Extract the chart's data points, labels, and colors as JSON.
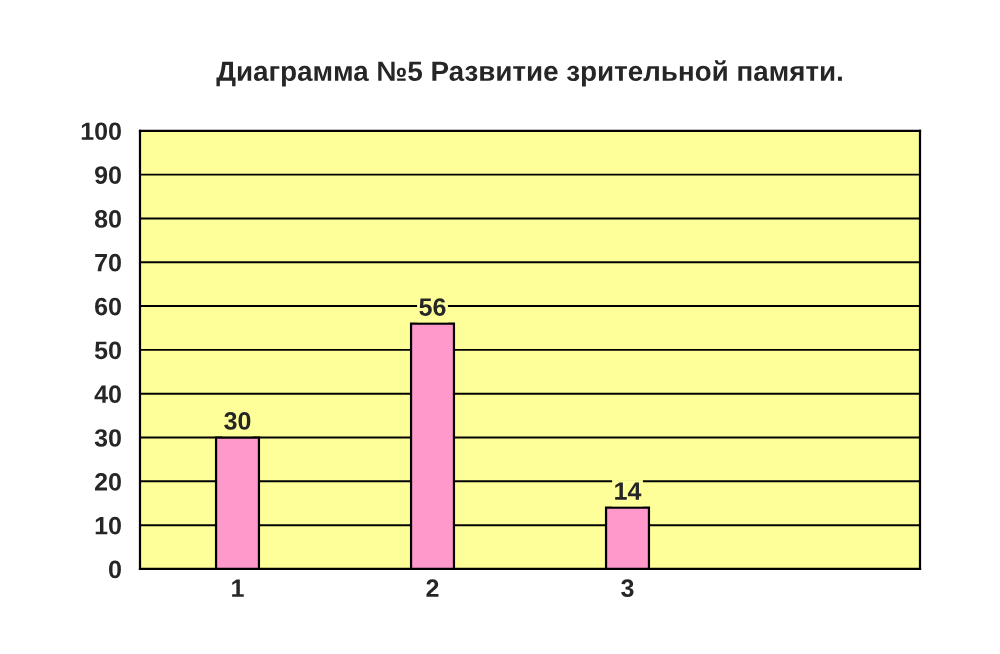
{
  "chart_data": {
    "type": "bar",
    "title": "Диаграмма №5 Развитие зрительной памяти.",
    "categories": [
      "1",
      "2",
      "3",
      null
    ],
    "series": [
      {
        "color": "#ff99cc",
        "values": [
          30,
          56,
          14,
          null
        ]
      }
    ],
    "ylim": [
      0,
      100
    ],
    "yticks": [
      0,
      10,
      20,
      30,
      40,
      50,
      60,
      70,
      80,
      90,
      100
    ],
    "grid": "y",
    "data_labels": true,
    "legend": false
  }
}
